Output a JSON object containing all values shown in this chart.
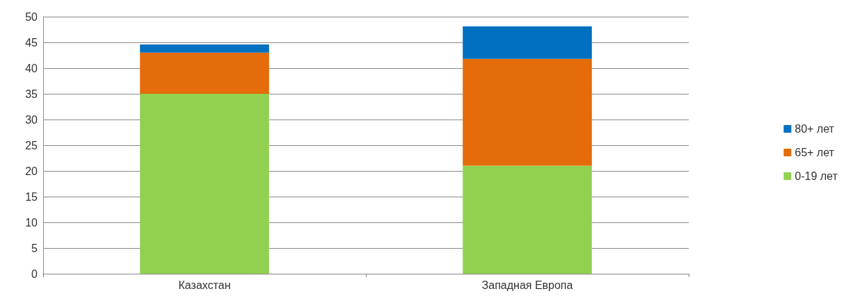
{
  "chart_data": {
    "type": "bar",
    "stacked": true,
    "categories": [
      "Казахстан",
      "Западная Европа"
    ],
    "series": [
      {
        "name": "0-19 лет",
        "color": "#92d050",
        "values": [
          35,
          21
        ]
      },
      {
        "name": "65+ лет",
        "color": "#e46c0a",
        "values": [
          8,
          20.8
        ]
      },
      {
        "name": "80+ лет",
        "color": "#0070c0",
        "values": [
          1.6,
          6.3
        ]
      }
    ],
    "ylim": [
      0,
      50
    ],
    "yticks": [
      0,
      5,
      10,
      15,
      20,
      25,
      30,
      35,
      40,
      45,
      50
    ],
    "grid": "y",
    "legend": "right"
  }
}
